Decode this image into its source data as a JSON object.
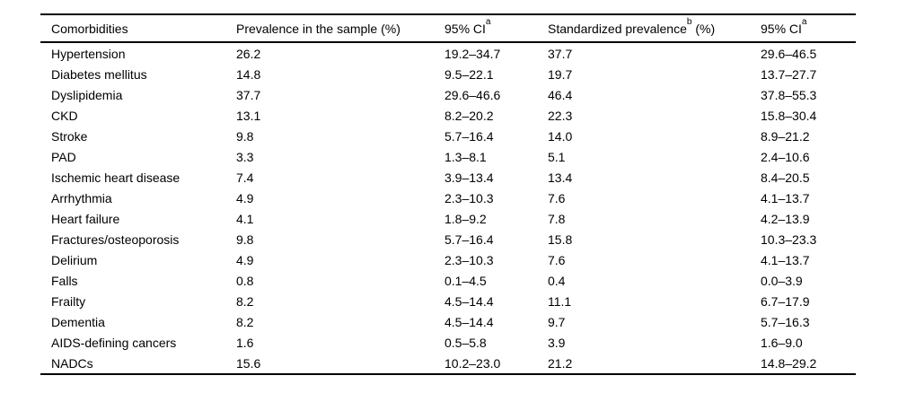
{
  "table": {
    "background": "#ffffff",
    "text_color": "#000000",
    "rule_color": "#000000",
    "columns": [
      {
        "label": "Comorbidities",
        "sup": "",
        "suffix": ""
      },
      {
        "label": "Prevalence in the sample (%)",
        "sup": "",
        "suffix": ""
      },
      {
        "label": "95% CI",
        "sup": "a",
        "suffix": ""
      },
      {
        "label": "Standardized prevalence",
        "sup": "b",
        "suffix": " (%)"
      },
      {
        "label": "95% CI",
        "sup": "a",
        "suffix": ""
      }
    ],
    "row_keys": [
      "comorbidity",
      "prevalence",
      "ci",
      "std_prevalence",
      "std_ci"
    ],
    "rows": [
      {
        "comorbidity": "Hypertension",
        "prevalence": "26.2",
        "ci": "19.2–34.7",
        "std_prevalence": "37.7",
        "std_ci": "29.6–46.5"
      },
      {
        "comorbidity": "Diabetes mellitus",
        "prevalence": "14.8",
        "ci": "9.5–22.1",
        "std_prevalence": "19.7",
        "std_ci": "13.7–27.7"
      },
      {
        "comorbidity": "Dyslipidemia",
        "prevalence": "37.7",
        "ci": "29.6–46.6",
        "std_prevalence": "46.4",
        "std_ci": "37.8–55.3"
      },
      {
        "comorbidity": "CKD",
        "prevalence": "13.1",
        "ci": "8.2–20.2",
        "std_prevalence": "22.3",
        "std_ci": "15.8–30.4"
      },
      {
        "comorbidity": "Stroke",
        "prevalence": "9.8",
        "ci": "5.7–16.4",
        "std_prevalence": "14.0",
        "std_ci": "8.9–21.2"
      },
      {
        "comorbidity": "PAD",
        "prevalence": "3.3",
        "ci": "1.3–8.1",
        "std_prevalence": "5.1",
        "std_ci": "2.4–10.6"
      },
      {
        "comorbidity": "Ischemic heart disease",
        "prevalence": "7.4",
        "ci": "3.9–13.4",
        "std_prevalence": "13.4",
        "std_ci": "8.4–20.5"
      },
      {
        "comorbidity": "Arrhythmia",
        "prevalence": "4.9",
        "ci": "2.3–10.3",
        "std_prevalence": "7.6",
        "std_ci": "4.1–13.7"
      },
      {
        "comorbidity": "Heart failure",
        "prevalence": "4.1",
        "ci": "1.8–9.2",
        "std_prevalence": "7.8",
        "std_ci": "4.2–13.9"
      },
      {
        "comorbidity": "Fractures/osteoporosis",
        "prevalence": "9.8",
        "ci": "5.7–16.4",
        "std_prevalence": "15.8",
        "std_ci": "10.3–23.3"
      },
      {
        "comorbidity": "Delirium",
        "prevalence": "4.9",
        "ci": "2.3–10.3",
        "std_prevalence": "7.6",
        "std_ci": "4.1–13.7"
      },
      {
        "comorbidity": "Falls",
        "prevalence": "0.8",
        "ci": "0.1–4.5",
        "std_prevalence": "0.4",
        "std_ci": "0.0–3.9"
      },
      {
        "comorbidity": "Frailty",
        "prevalence": "8.2",
        "ci": "4.5–14.4",
        "std_prevalence": "11.1",
        "std_ci": "6.7–17.9"
      },
      {
        "comorbidity": "Dementia",
        "prevalence": "8.2",
        "ci": "4.5–14.4",
        "std_prevalence": "9.7",
        "std_ci": "5.7–16.3"
      },
      {
        "comorbidity": "AIDS-defining cancers",
        "prevalence": "1.6",
        "ci": "0.5–5.8",
        "std_prevalence": "3.9",
        "std_ci": "1.6–9.0"
      },
      {
        "comorbidity": "NADCs",
        "prevalence": "15.6",
        "ci": "10.2–23.0",
        "std_prevalence": "21.2",
        "std_ci": "14.8–29.2"
      }
    ]
  }
}
